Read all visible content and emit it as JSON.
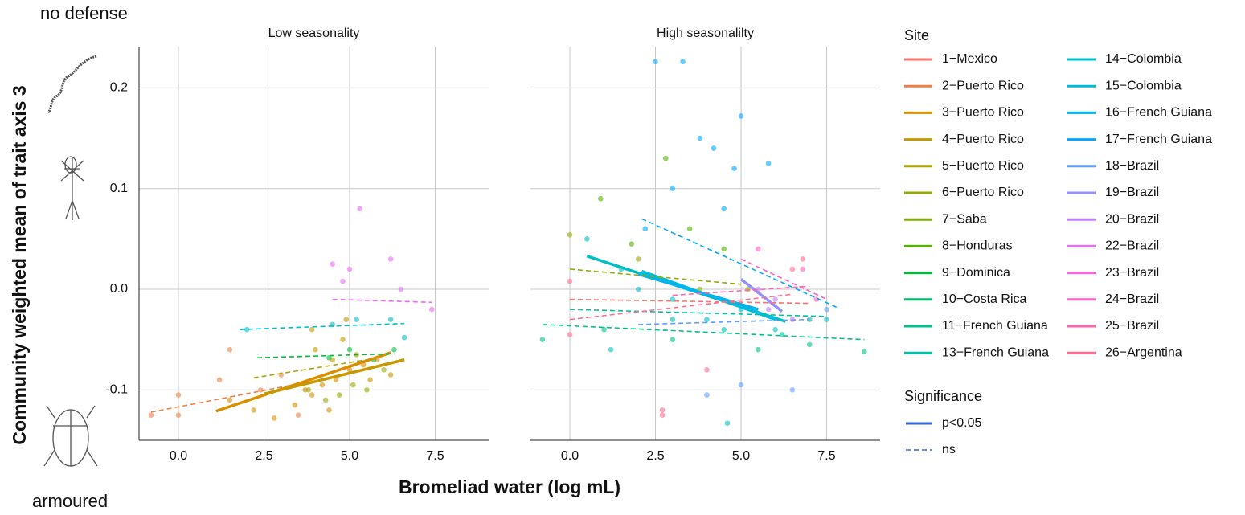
{
  "side_labels": {
    "top": "no defense",
    "bottom": "armoured"
  },
  "chart_data": {
    "type": "scatter",
    "y_label": "Community weighted mean of trait axis 3",
    "x_label": "Bromeliad water (log mL)",
    "xlim": [
      -1.15,
      9.06
    ],
    "xticks": [
      {
        "value": 0,
        "label": "0.0"
      },
      {
        "value": 2.5,
        "label": "2.5"
      },
      {
        "value": 5,
        "label": "5.0"
      },
      {
        "value": 7.5,
        "label": "7.5"
      }
    ],
    "ylim": [
      -0.15,
      0.241
    ],
    "yticks": [
      {
        "value": -0.1,
        "label": "-0.1"
      },
      {
        "value": 0,
        "label": "0.0"
      },
      {
        "value": 0.1,
        "label": "0.1"
      },
      {
        "value": 0.2,
        "label": "0.2"
      }
    ],
    "grid": true,
    "legend_title": "Site",
    "sites": [
      {
        "name": "1−Mexico",
        "color": "#F8766D"
      },
      {
        "name": "2−Puerto Rico",
        "color": "#EE8044"
      },
      {
        "name": "3−Puerto Rico",
        "color": "#DB8E00"
      },
      {
        "name": "4−Puerto Rico",
        "color": "#C79800"
      },
      {
        "name": "5−Puerto Rico",
        "color": "#AEA200"
      },
      {
        "name": "6−Puerto Rico",
        "color": "#96A900"
      },
      {
        "name": "7−Saba",
        "color": "#7CAE00"
      },
      {
        "name": "8−Honduras",
        "color": "#53B400"
      },
      {
        "name": "9−Dominica",
        "color": "#00BA38"
      },
      {
        "name": "10−Costa Rica",
        "color": "#00BE6C"
      },
      {
        "name": "11−French Guiana",
        "color": "#00C08B"
      },
      {
        "name": "13−French Guiana",
        "color": "#00C1A7"
      },
      {
        "name": "14−Colombia",
        "color": "#00BFC4"
      },
      {
        "name": "15−Colombia",
        "color": "#00BBDB"
      },
      {
        "name": "16−French Guiana",
        "color": "#00B4EF"
      },
      {
        "name": "17−French Guiana",
        "color": "#00A9FF"
      },
      {
        "name": "18−Brazil",
        "color": "#619CFF"
      },
      {
        "name": "19−Brazil",
        "color": "#9590FF"
      },
      {
        "name": "20−Brazil",
        "color": "#C77CFF"
      },
      {
        "name": "22−Brazil",
        "color": "#E76BF3"
      },
      {
        "name": "23−Brazil",
        "color": "#F564E3"
      },
      {
        "name": "24−Brazil",
        "color": "#FF61C3"
      },
      {
        "name": "25−Brazil",
        "color": "#FF64B0"
      },
      {
        "name": "26−Argentina",
        "color": "#FF6C91"
      }
    ],
    "significance_title": "Significance",
    "significance": [
      {
        "name": "p<0.05",
        "dash": "solid",
        "color": "#3366DD"
      },
      {
        "name": "ns",
        "dash": "dashed",
        "color": "#3366DD"
      }
    ],
    "panels": [
      {
        "title": "Low seasonality",
        "lines": [
          {
            "site": 1,
            "significant": false,
            "x": [
              -0.8,
              3.5
            ],
            "y": [
              -0.122,
              -0.094
            ]
          },
          {
            "site": 2,
            "significant": true,
            "x": [
              1.1,
              6.2
            ],
            "y": [
              -0.121,
              -0.063
            ]
          },
          {
            "site": 3,
            "significant": true,
            "x": [
              2.5,
              6.6
            ],
            "y": [
              -0.104,
              -0.07
            ]
          },
          {
            "site": 4,
            "significant": false,
            "x": [
              2.2,
              5.5
            ],
            "y": [
              -0.088,
              -0.07
            ]
          },
          {
            "site": 8,
            "significant": false,
            "x": [
              2.3,
              6.3
            ],
            "y": [
              -0.068,
              -0.064
            ]
          },
          {
            "site": 12,
            "significant": false,
            "x": [
              1.8,
              6.6
            ],
            "y": [
              -0.04,
              -0.034
            ]
          },
          {
            "site": 19,
            "significant": false,
            "x": [
              4.5,
              7.4
            ],
            "y": [
              -0.01,
              -0.013
            ]
          }
        ],
        "points": [
          {
            "site": 2,
            "x": [
              1.5,
              2.2,
              2.8,
              3.4,
              3.9,
              4.2,
              4.6,
              5.0,
              5.4,
              5.8,
              4.4,
              3.7
            ],
            "y": [
              -0.11,
              -0.12,
              -0.128,
              -0.115,
              -0.105,
              -0.095,
              -0.09,
              -0.08,
              -0.075,
              -0.07,
              -0.12,
              -0.1
            ]
          },
          {
            "site": 1,
            "x": [
              -0.8,
              0,
              0,
              1.2,
              1.5,
              2.4,
              3.0,
              3.5
            ],
            "y": [
              -0.125,
              -0.105,
              -0.125,
              -0.09,
              -0.06,
              -0.1,
              -0.085,
              -0.125
            ]
          },
          {
            "site": 3,
            "x": [
              4.0,
              4.5,
              4.8,
              5.2,
              5.6,
              6.2,
              3.9,
              4.9
            ],
            "y": [
              -0.06,
              -0.07,
              -0.05,
              -0.065,
              -0.09,
              -0.085,
              -0.04,
              -0.03
            ]
          },
          {
            "site": 5,
            "x": [
              3.8,
              4.3,
              4.7,
              5.1,
              5.5,
              6.0
            ],
            "y": [
              -0.1,
              -0.11,
              -0.105,
              -0.095,
              -0.1,
              -0.08
            ]
          },
          {
            "site": 8,
            "x": [
              4.4,
              5.0,
              5.7,
              6.3
            ],
            "y": [
              -0.068,
              -0.06,
              -0.07,
              -0.06
            ]
          },
          {
            "site": 12,
            "x": [
              2.0,
              4.5,
              5.2,
              6.2,
              6.6
            ],
            "y": [
              -0.04,
              -0.035,
              -0.03,
              -0.03,
              -0.048
            ]
          },
          {
            "site": 19,
            "x": [
              4.8,
              5.3,
              4.5,
              6.2,
              5.0,
              6.5,
              7.4
            ],
            "y": [
              0.008,
              0.08,
              0.025,
              0.03,
              0.02,
              0.0,
              -0.02
            ]
          }
        ]
      },
      {
        "title": "High seasonalilty",
        "lines": [
          {
            "site": 12,
            "significant": true,
            "x": [
              0.5,
              6.3
            ],
            "y": [
              0.033,
              -0.032
            ]
          },
          {
            "site": 13,
            "significant": true,
            "x": [
              2.1,
              6.0
            ],
            "y": [
              0.018,
              -0.03
            ]
          },
          {
            "site": 14,
            "significant": true,
            "x": [
              2.0,
              5.5
            ],
            "y": [
              0.015,
              -0.02
            ]
          },
          {
            "site": 17,
            "significant": true,
            "x": [
              5.0,
              6.2
            ],
            "y": [
              0.01,
              -0.022
            ]
          },
          {
            "site": 15,
            "significant": false,
            "x": [
              2.1,
              7.8
            ],
            "y": [
              0.07,
              -0.018
            ]
          },
          {
            "site": 5,
            "significant": false,
            "x": [
              0,
              5
            ],
            "y": [
              0.02,
              0.005
            ]
          },
          {
            "site": 10,
            "significant": false,
            "x": [
              -0.8,
              8.6
            ],
            "y": [
              -0.035,
              -0.05
            ]
          },
          {
            "site": 11,
            "significant": false,
            "x": [
              0,
              7.5
            ],
            "y": [
              -0.02,
              -0.027
            ]
          },
          {
            "site": 23,
            "significant": false,
            "x": [
              0,
              6.5
            ],
            "y": [
              -0.03,
              -0.005
            ]
          },
          {
            "site": 22,
            "significant": false,
            "x": [
              3,
              7
            ],
            "y": [
              -0.006,
              0.003
            ]
          },
          {
            "site": 21,
            "significant": false,
            "x": [
              5,
              7.5
            ],
            "y": [
              0.03,
              -0.01
            ]
          },
          {
            "site": 0,
            "significant": false,
            "x": [
              0,
              7
            ],
            "y": [
              -0.01,
              -0.014
            ]
          },
          {
            "site": 16,
            "significant": false,
            "x": [
              2,
              7
            ],
            "y": [
              -0.035,
              -0.03
            ]
          }
        ],
        "points": [
          {
            "site": 15,
            "x": [
              2.5,
              3.3,
              4.2,
              3.8,
              4.8,
              5.0,
              5.8,
              3.0,
              2.2,
              4.5
            ],
            "y": [
              0.226,
              0.226,
              0.14,
              0.15,
              0.12,
              0.172,
              0.125,
              0.1,
              0.06,
              0.08
            ]
          },
          {
            "site": 12,
            "x": [
              0.5,
              1.5,
              2.0,
              3.0,
              4.0,
              5.0,
              6.0,
              7.5,
              4.6,
              1.2
            ],
            "y": [
              0.05,
              0.02,
              0.0,
              -0.01,
              -0.03,
              -0.02,
              -0.04,
              -0.03,
              -0.133,
              -0.06
            ]
          },
          {
            "site": 7,
            "x": [
              0.9,
              1.8,
              2.8,
              3.5,
              4.5
            ],
            "y": [
              0.09,
              0.045,
              0.13,
              0.06,
              0.04
            ]
          },
          {
            "site": 10,
            "x": [
              -0.8,
              1.0,
              3.0,
              5.5,
              8.6,
              7.0
            ],
            "y": [
              -0.05,
              -0.04,
              -0.05,
              -0.06,
              -0.062,
              -0.055
            ]
          },
          {
            "site": 23,
            "x": [
              0,
              0,
              2.7,
              2.7,
              4.0,
              6.5,
              6.8
            ],
            "y": [
              -0.045,
              0.008,
              -0.12,
              -0.125,
              -0.08,
              0.02,
              0.03
            ]
          },
          {
            "site": 5,
            "x": [
              0,
              2.0,
              3.8,
              5.2
            ],
            "y": [
              0.054,
              0.03,
              0.0,
              0.0
            ]
          },
          {
            "site": 18,
            "x": [
              5.5,
              6.0,
              6.5,
              5.8
            ],
            "y": [
              0.0,
              -0.01,
              -0.03,
              -0.02
            ]
          },
          {
            "site": 21,
            "x": [
              5.5,
              6.8,
              7.2
            ],
            "y": [
              0.04,
              0.02,
              -0.01
            ]
          },
          {
            "site": 16,
            "x": [
              4.0,
              5.0,
              6.5,
              7.5
            ],
            "y": [
              -0.105,
              -0.095,
              -0.1,
              -0.02
            ]
          },
          {
            "site": 11,
            "x": [
              3.0,
              4.5,
              6.2,
              7.0
            ],
            "y": [
              -0.03,
              -0.04,
              -0.045,
              -0.03
            ]
          }
        ]
      }
    ]
  }
}
